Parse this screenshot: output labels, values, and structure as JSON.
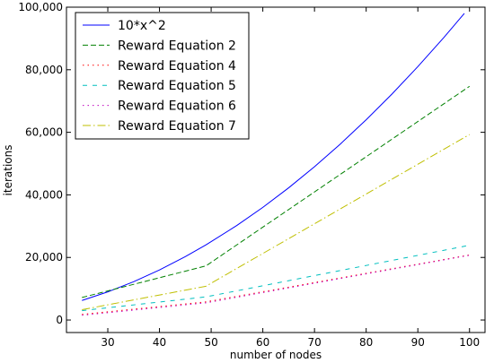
{
  "chart_data": {
    "type": "line",
    "title": "",
    "xlabel": "number of nodes",
    "ylabel": "iterations",
    "xlim": [
      22,
      103
    ],
    "ylim": [
      -4000,
      100000
    ],
    "x_ticks": [
      30,
      40,
      50,
      60,
      70,
      80,
      90,
      100
    ],
    "y_ticks": [
      0,
      20000,
      40000,
      60000,
      80000,
      100000
    ],
    "y_tick_labels": [
      "0",
      "20,000",
      "40,000",
      "60,000",
      "80,000",
      "100,000"
    ],
    "grid": false,
    "legend_position": "top-left",
    "series": [
      {
        "name": "10*x^2",
        "color": "#0000ff",
        "dash": "solid",
        "x": [
          25,
          30,
          35,
          40,
          45,
          49,
          55,
          60,
          65,
          70,
          75,
          80,
          85,
          90,
          95,
          99
        ],
        "y": [
          6250,
          9000,
          12250,
          16000,
          20250,
          24010,
          30250,
          36000,
          42250,
          49000,
          56250,
          64000,
          72250,
          81000,
          90250,
          98010
        ]
      },
      {
        "name": "Reward Equation 2",
        "color": "#008000",
        "dash": "dashed",
        "x": [
          25,
          49,
          100
        ],
        "y": [
          7200,
          17300,
          74700
        ]
      },
      {
        "name": "Reward Equation 4",
        "color": "#ff0000",
        "dash": "dotted",
        "x": [
          25,
          49,
          100
        ],
        "y": [
          1800,
          5800,
          20800
        ]
      },
      {
        "name": "Reward Equation 5",
        "color": "#00bfbf",
        "dash": "dashed-short",
        "x": [
          25,
          49,
          100
        ],
        "y": [
          3000,
          7400,
          23900
        ]
      },
      {
        "name": "Reward Equation 6",
        "color": "#bf00bf",
        "dash": "dotted",
        "x": [
          25,
          49,
          100
        ],
        "y": [
          1500,
          5500,
          20700
        ]
      },
      {
        "name": "Reward Equation 7",
        "color": "#bfbf00",
        "dash": "dash-dot",
        "x": [
          25,
          49,
          100
        ],
        "y": [
          3300,
          10800,
          59300
        ]
      }
    ]
  }
}
